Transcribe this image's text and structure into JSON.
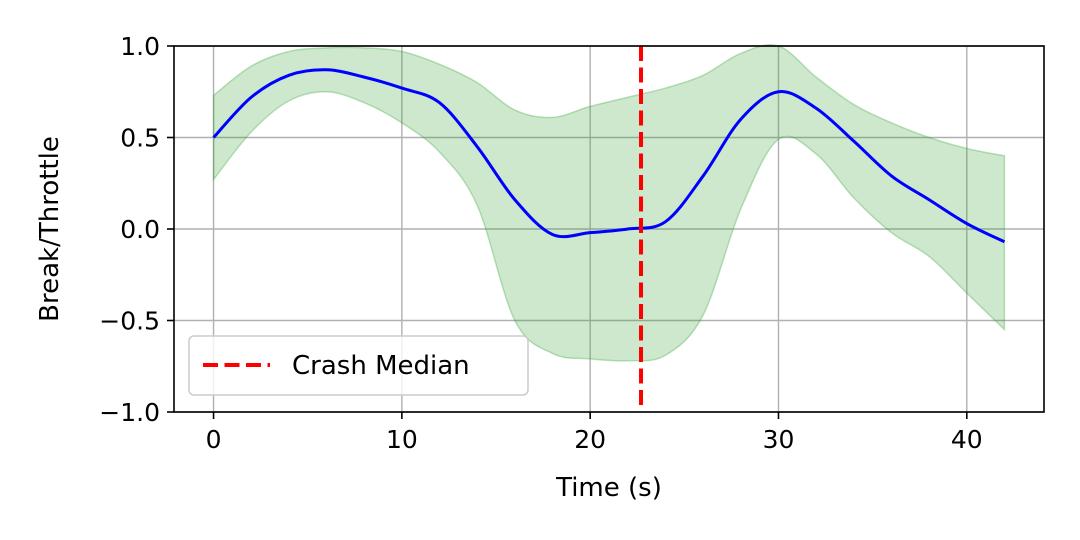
{
  "chart_data": {
    "type": "line",
    "title": "",
    "xlabel": "Time (s)",
    "ylabel": "Break/Throttle",
    "xlim": [
      -2.1,
      44.1
    ],
    "ylim": [
      -1.0,
      1.0
    ],
    "xticks": [
      0,
      10,
      20,
      30,
      40
    ],
    "yticks": [
      -1.0,
      -0.5,
      0.0,
      0.5,
      1.0
    ],
    "xtick_labels": [
      "0",
      "10",
      "20",
      "30",
      "40"
    ],
    "ytick_labels": [
      "−1.0",
      "−0.5",
      "0.0",
      "0.5",
      "1.0"
    ],
    "grid": true,
    "legend_position": "lower-left",
    "series": [
      {
        "color": "#0000ff",
        "x": [
          0,
          2,
          4,
          6,
          8,
          10,
          12,
          14,
          16,
          18,
          20,
          22,
          24,
          26,
          28,
          30,
          32,
          34,
          36,
          38,
          40,
          42
        ],
        "y": [
          0.5,
          0.72,
          0.84,
          0.87,
          0.83,
          0.77,
          0.69,
          0.45,
          0.16,
          -0.03,
          -0.02,
          0.0,
          0.04,
          0.29,
          0.6,
          0.75,
          0.66,
          0.48,
          0.29,
          0.16,
          0.03,
          -0.07
        ]
      }
    ],
    "band": {
      "color": "#2ca02c",
      "opacity": 0.24,
      "x": [
        0,
        2,
        4,
        6,
        8,
        10,
        12,
        14,
        16,
        18,
        20,
        22,
        24,
        26,
        28,
        30,
        32,
        34,
        36,
        38,
        40,
        42
      ],
      "upper": [
        0.73,
        0.89,
        0.97,
        0.99,
        0.99,
        0.97,
        0.9,
        0.8,
        0.65,
        0.61,
        0.67,
        0.72,
        0.77,
        0.84,
        0.96,
        1.0,
        0.83,
        0.68,
        0.58,
        0.5,
        0.44,
        0.4
      ],
      "lower": [
        0.27,
        0.53,
        0.7,
        0.75,
        0.69,
        0.58,
        0.42,
        0.13,
        -0.5,
        -0.68,
        -0.71,
        -0.72,
        -0.69,
        -0.47,
        0.11,
        0.49,
        0.41,
        0.17,
        -0.02,
        -0.15,
        -0.35,
        -0.55
      ]
    },
    "vlines": [
      {
        "x": 22.7,
        "color": "#ff0000",
        "style": "dashed",
        "label": "Crash Median"
      }
    ],
    "legend": [
      {
        "label": "Crash Median",
        "color": "#ff0000",
        "style": "dashed"
      }
    ]
  }
}
